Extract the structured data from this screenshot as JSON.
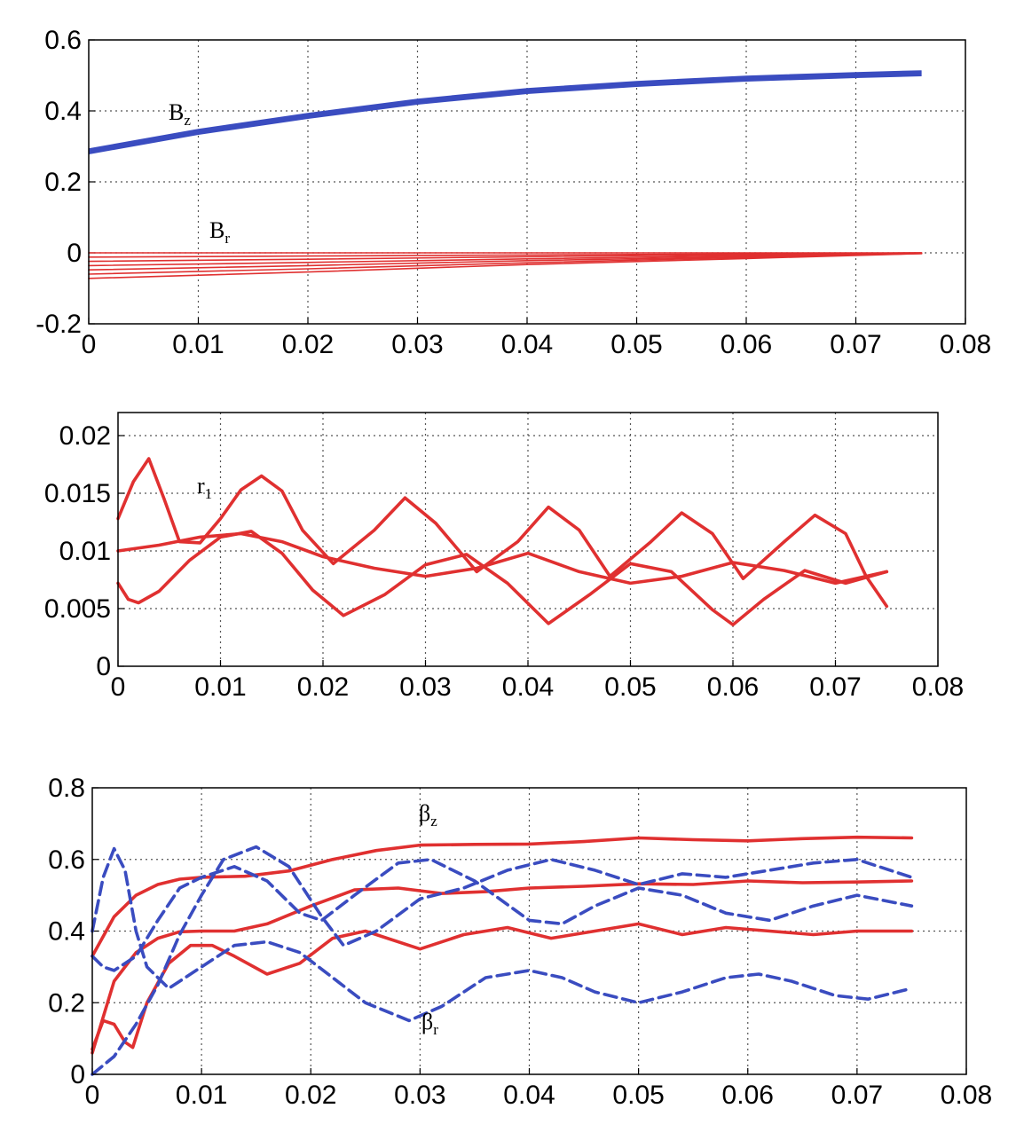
{
  "colors": {
    "red": "#e03030",
    "blue": "#3a4cc0",
    "grid": "#555555"
  },
  "chart_data": [
    {
      "type": "line",
      "title": "",
      "xlabel": "",
      "ylabel": "",
      "xlim": [
        0,
        0.08
      ],
      "ylim": [
        -0.2,
        0.6
      ],
      "x_ticks": [
        "0",
        "0.01",
        "0.02",
        "0.03",
        "0.04",
        "0.05",
        "0.06",
        "0.07",
        "0.08"
      ],
      "y_ticks": [
        "-0.2",
        "0",
        "0.2",
        "0.4",
        "0.6"
      ],
      "grid": true,
      "labels": [
        {
          "main": "B",
          "sub": "z"
        },
        {
          "main": "B",
          "sub": "r"
        }
      ],
      "series": [
        {
          "color": "red",
          "style": "solid",
          "x": [
            0,
            0.01,
            0.02,
            0.03,
            0.04,
            0.05,
            0.06,
            0.07,
            0.076
          ],
          "y": [
            0.28,
            0.335,
            0.38,
            0.42,
            0.45,
            0.47,
            0.485,
            0.495,
            0.5
          ],
          "band": [
            0,
            0.004,
            0.008,
            0.012
          ],
          "band_color": "blue"
        },
        {
          "color": "red",
          "style": "solid",
          "x": [
            0,
            0.076
          ],
          "y": [
            0.0,
            0.0
          ]
        },
        {
          "color": "red",
          "style": "solid",
          "x": [
            0,
            0.02,
            0.04,
            0.06,
            0.076
          ],
          "y": [
            -0.012,
            -0.009,
            -0.006,
            -0.003,
            0.0
          ]
        },
        {
          "color": "red",
          "style": "solid",
          "x": [
            0,
            0.02,
            0.04,
            0.06,
            0.076
          ],
          "y": [
            -0.024,
            -0.018,
            -0.011,
            -0.005,
            0.0
          ]
        },
        {
          "color": "red",
          "style": "solid",
          "x": [
            0,
            0.02,
            0.04,
            0.06,
            0.076
          ],
          "y": [
            -0.036,
            -0.027,
            -0.017,
            -0.008,
            -0.001
          ]
        },
        {
          "color": "red",
          "style": "solid",
          "x": [
            0,
            0.02,
            0.04,
            0.06,
            0.076
          ],
          "y": [
            -0.048,
            -0.036,
            -0.022,
            -0.011,
            -0.001
          ]
        },
        {
          "color": "red",
          "style": "solid",
          "x": [
            0,
            0.02,
            0.04,
            0.06,
            0.076
          ],
          "y": [
            -0.06,
            -0.045,
            -0.028,
            -0.013,
            -0.002
          ]
        },
        {
          "color": "red",
          "style": "solid",
          "x": [
            0,
            0.02,
            0.04,
            0.06,
            0.076
          ],
          "y": [
            -0.072,
            -0.054,
            -0.033,
            -0.016,
            -0.002
          ]
        }
      ]
    },
    {
      "type": "line",
      "title": "",
      "xlabel": "",
      "ylabel": "",
      "xlim": [
        0,
        0.08
      ],
      "ylim": [
        0,
        0.022
      ],
      "x_ticks": [
        "0",
        "0.01",
        "0.02",
        "0.03",
        "0.04",
        "0.05",
        "0.06",
        "0.07",
        "0.08"
      ],
      "y_ticks": [
        "0",
        "0.005",
        "0.01",
        "0.015",
        "0.02"
      ],
      "y_tick_values": [
        0,
        0.005,
        0.01,
        0.015,
        0.02
      ],
      "grid": true,
      "labels": [
        {
          "main": "r",
          "sub": "1"
        }
      ],
      "series": [
        {
          "color": "red",
          "style": "solid",
          "x": [
            0,
            0.0015,
            0.003,
            0.0045,
            0.006,
            0.008,
            0.01,
            0.012,
            0.014,
            0.016,
            0.018,
            0.021,
            0.025,
            0.028,
            0.031,
            0.035,
            0.039,
            0.042,
            0.045,
            0.048,
            0.052,
            0.055,
            0.058,
            0.061,
            0.065,
            0.068,
            0.071,
            0.073,
            0.075
          ],
          "y": [
            0.0128,
            0.016,
            0.018,
            0.0145,
            0.0108,
            0.0107,
            0.0128,
            0.0153,
            0.0165,
            0.0152,
            0.0118,
            0.0089,
            0.0118,
            0.0146,
            0.0124,
            0.0082,
            0.0108,
            0.0138,
            0.0118,
            0.0078,
            0.0108,
            0.0133,
            0.0115,
            0.0076,
            0.0108,
            0.0131,
            0.0115,
            0.0078,
            0.0052
          ]
        },
        {
          "color": "red",
          "style": "solid",
          "x": [
            0,
            0.004,
            0.008,
            0.012,
            0.016,
            0.02,
            0.025,
            0.03,
            0.035,
            0.04,
            0.045,
            0.05,
            0.055,
            0.06,
            0.065,
            0.07,
            0.075
          ],
          "y": [
            0.01,
            0.0105,
            0.0112,
            0.0115,
            0.0108,
            0.0095,
            0.0085,
            0.0078,
            0.0085,
            0.0098,
            0.0082,
            0.0072,
            0.0078,
            0.009,
            0.0083,
            0.0072,
            0.0082
          ]
        },
        {
          "color": "red",
          "style": "solid",
          "x": [
            0,
            0.001,
            0.002,
            0.004,
            0.007,
            0.01,
            0.013,
            0.016,
            0.019,
            0.022,
            0.026,
            0.03,
            0.034,
            0.038,
            0.042,
            0.046,
            0.05,
            0.054,
            0.058,
            0.06,
            0.063,
            0.067,
            0.071,
            0.075
          ],
          "y": [
            0.0072,
            0.0058,
            0.0055,
            0.0065,
            0.0092,
            0.0112,
            0.0117,
            0.0098,
            0.0066,
            0.0044,
            0.0062,
            0.0088,
            0.0097,
            0.0072,
            0.0037,
            0.0062,
            0.0089,
            0.0082,
            0.0049,
            0.0036,
            0.0058,
            0.0083,
            0.0072,
            0.0082
          ]
        }
      ]
    },
    {
      "type": "line",
      "title": "",
      "xlabel": "",
      "ylabel": "",
      "xlim": [
        0,
        0.08
      ],
      "ylim": [
        0,
        0.8
      ],
      "x_ticks": [
        "0",
        "0.01",
        "0.02",
        "0.03",
        "0.04",
        "0.05",
        "0.06",
        "0.07",
        "0.08"
      ],
      "y_ticks": [
        "0",
        "0.2",
        "0.4",
        "0.6",
        "0.8"
      ],
      "grid": true,
      "labels": [
        {
          "main": "β",
          "sub": "z"
        },
        {
          "main": "β",
          "sub": "r"
        }
      ],
      "series": [
        {
          "color": "red",
          "style": "solid",
          "x": [
            0,
            0.002,
            0.004,
            0.006,
            0.008,
            0.01,
            0.014,
            0.018,
            0.022,
            0.026,
            0.03,
            0.035,
            0.04,
            0.045,
            0.05,
            0.055,
            0.06,
            0.065,
            0.07,
            0.075
          ],
          "y": [
            0.33,
            0.44,
            0.5,
            0.53,
            0.545,
            0.55,
            0.553,
            0.568,
            0.6,
            0.625,
            0.64,
            0.642,
            0.643,
            0.65,
            0.66,
            0.655,
            0.652,
            0.658,
            0.662,
            0.66
          ]
        },
        {
          "color": "red",
          "style": "solid",
          "x": [
            0,
            0.002,
            0.004,
            0.006,
            0.008,
            0.01,
            0.013,
            0.016,
            0.02,
            0.024,
            0.028,
            0.032,
            0.036,
            0.04,
            0.045,
            0.05,
            0.055,
            0.06,
            0.065,
            0.07,
            0.075
          ],
          "y": [
            0.06,
            0.26,
            0.34,
            0.38,
            0.398,
            0.4,
            0.4,
            0.42,
            0.47,
            0.515,
            0.52,
            0.505,
            0.51,
            0.52,
            0.525,
            0.532,
            0.53,
            0.54,
            0.535,
            0.537,
            0.54
          ]
        },
        {
          "color": "red",
          "style": "solid",
          "x": [
            0,
            0.001,
            0.002,
            0.003,
            0.0037,
            0.005,
            0.007,
            0.009,
            0.011,
            0.013,
            0.016,
            0.019,
            0.022,
            0.025,
            0.03,
            0.034,
            0.038,
            0.042,
            0.046,
            0.05,
            0.054,
            0.058,
            0.062,
            0.066,
            0.07,
            0.075
          ],
          "y": [
            0.07,
            0.15,
            0.14,
            0.09,
            0.075,
            0.2,
            0.31,
            0.36,
            0.36,
            0.33,
            0.28,
            0.31,
            0.38,
            0.4,
            0.35,
            0.39,
            0.41,
            0.38,
            0.4,
            0.42,
            0.39,
            0.41,
            0.4,
            0.39,
            0.4,
            0.4
          ]
        },
        {
          "color": "blue",
          "style": "dashed",
          "x": [
            0,
            0.001,
            0.002,
            0.003,
            0.004,
            0.005,
            0.007,
            0.01,
            0.013,
            0.016,
            0.019,
            0.022,
            0.025,
            0.029,
            0.032,
            0.036,
            0.04,
            0.043,
            0.046,
            0.05,
            0.054,
            0.058,
            0.061,
            0.064,
            0.068,
            0.071,
            0.075
          ],
          "y": [
            0.4,
            0.55,
            0.63,
            0.57,
            0.4,
            0.3,
            0.24,
            0.3,
            0.36,
            0.37,
            0.34,
            0.27,
            0.2,
            0.15,
            0.19,
            0.27,
            0.29,
            0.27,
            0.23,
            0.2,
            0.23,
            0.27,
            0.28,
            0.26,
            0.22,
            0.21,
            0.24
          ]
        },
        {
          "color": "blue",
          "style": "dashed",
          "x": [
            0,
            0.001,
            0.002,
            0.004,
            0.006,
            0.008,
            0.01,
            0.013,
            0.016,
            0.019,
            0.021,
            0.024,
            0.028,
            0.031,
            0.035,
            0.04,
            0.043,
            0.046,
            0.05,
            0.054,
            0.058,
            0.062,
            0.066,
            0.07,
            0.075
          ],
          "y": [
            0.33,
            0.3,
            0.29,
            0.33,
            0.43,
            0.52,
            0.55,
            0.58,
            0.54,
            0.45,
            0.43,
            0.5,
            0.59,
            0.6,
            0.54,
            0.43,
            0.42,
            0.47,
            0.52,
            0.5,
            0.45,
            0.43,
            0.47,
            0.5,
            0.47
          ]
        },
        {
          "color": "blue",
          "style": "dashed",
          "x": [
            0,
            0.002,
            0.004,
            0.006,
            0.008,
            0.01,
            0.012,
            0.015,
            0.018,
            0.021,
            0.023,
            0.026,
            0.03,
            0.034,
            0.038,
            0.042,
            0.046,
            0.05,
            0.054,
            0.058,
            0.062,
            0.066,
            0.07,
            0.075
          ],
          "y": [
            0.0,
            0.05,
            0.14,
            0.25,
            0.39,
            0.5,
            0.6,
            0.635,
            0.58,
            0.44,
            0.36,
            0.4,
            0.49,
            0.52,
            0.57,
            0.6,
            0.57,
            0.53,
            0.56,
            0.55,
            0.57,
            0.59,
            0.6,
            0.55
          ]
        }
      ]
    }
  ]
}
